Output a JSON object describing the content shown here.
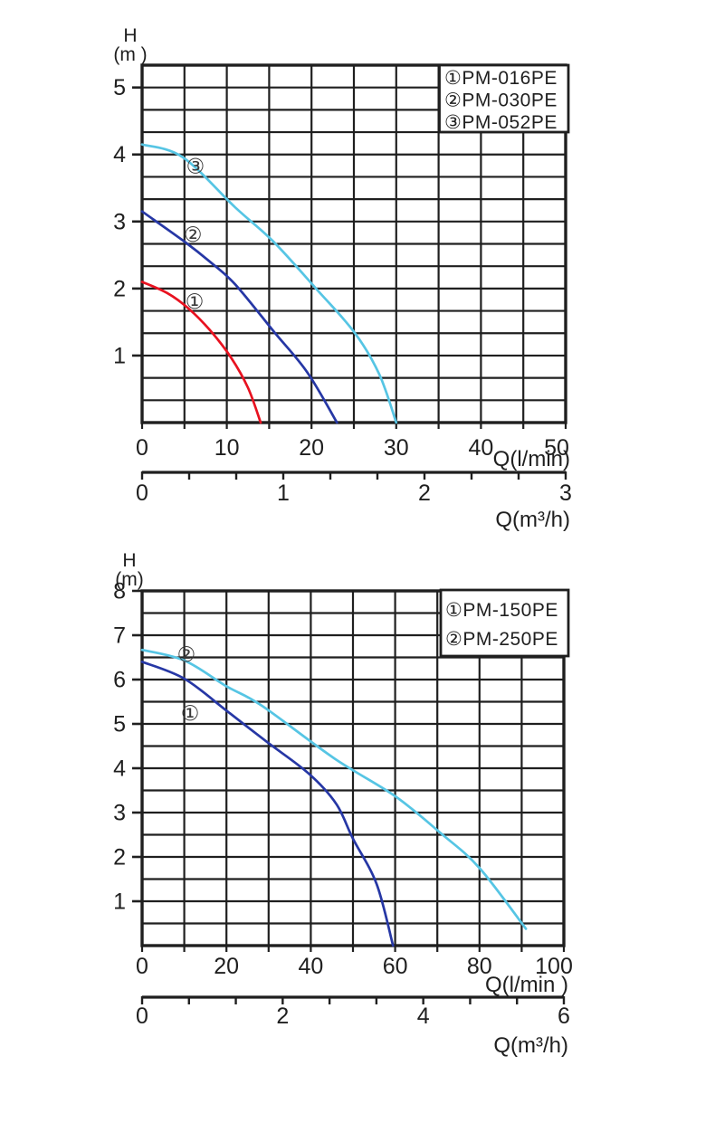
{
  "colors": {
    "ink": "#1f1f1f",
    "red": "#e81220",
    "blue": "#2637a5",
    "cyan": "#56c5e4",
    "background": "#ffffff",
    "legend_fill": "#ffffff"
  },
  "chart_data": [
    {
      "type": "line",
      "name": "small-circulation-pumps",
      "ylabel_line1": "H",
      "ylabel_line2": "(m )",
      "xlabel": "Q(l/min)",
      "x2label": "Q(m³/h)",
      "xlim": [
        0,
        50
      ],
      "ylim": [
        0,
        5.3333
      ],
      "x2lim": [
        0,
        3
      ],
      "x_ticks": [
        "0",
        "10",
        "20",
        "30",
        "40",
        "50"
      ],
      "y_ticks": [
        "1",
        "2",
        "3",
        "4",
        "5"
      ],
      "x2_ticks": [
        "0",
        "1",
        "2",
        "3"
      ],
      "grid": {
        "on": true,
        "cols": 10,
        "rows": 16,
        "x2_intervals": 9
      },
      "legend": {
        "position": "top-right",
        "items": [
          "①PM-016PE",
          "②PM-030PE",
          "③PM-052PE"
        ]
      },
      "annotations": [
        {
          "text": "③",
          "x": 6.3,
          "y": 3.83
        },
        {
          "text": "②",
          "x": 6.0,
          "y": 2.81
        },
        {
          "text": "①",
          "x": 6.2,
          "y": 1.81
        }
      ],
      "series": [
        {
          "name": "PM-016PE",
          "marker": "①",
          "color": "red",
          "points": [
            [
              0,
              2.1
            ],
            [
              3,
              1.93
            ],
            [
              5.5,
              1.7
            ],
            [
              8,
              1.38
            ],
            [
              10.5,
              0.97
            ],
            [
              12.5,
              0.52
            ],
            [
              14,
              0
            ]
          ]
        },
        {
          "name": "PM-030PE",
          "marker": "②",
          "color": "blue",
          "points": [
            [
              0,
              3.15
            ],
            [
              5,
              2.7
            ],
            [
              8,
              2.4
            ],
            [
              11,
              2.06
            ],
            [
              15.6,
              1.35
            ],
            [
              19.5,
              0.75
            ],
            [
              23,
              0
            ]
          ]
        },
        {
          "name": "PM-052PE",
          "marker": "③",
          "color": "cyan",
          "points": [
            [
              0,
              4.15
            ],
            [
              4.8,
              3.96
            ],
            [
              11,
              3.21
            ],
            [
              15.5,
              2.7
            ],
            [
              20.6,
              1.99
            ],
            [
              25.1,
              1.34
            ],
            [
              28,
              0.72
            ],
            [
              30,
              0
            ]
          ]
        }
      ]
    },
    {
      "type": "line",
      "name": "large-circulation-pumps",
      "ylabel_line1": "H",
      "ylabel_line2": "(m)",
      "xlabel": "Q(l/min )",
      "x2label": "Q(m³/h)",
      "xlim": [
        0,
        100
      ],
      "ylim": [
        0,
        8
      ],
      "x2lim": [
        0,
        6
      ],
      "x_ticks": [
        "0",
        "20",
        "40",
        "60",
        "80",
        "100"
      ],
      "y_ticks": [
        "1",
        "2",
        "3",
        "4",
        "5",
        "6",
        "7",
        "8"
      ],
      "x2_ticks": [
        "0",
        "2",
        "4",
        "6"
      ],
      "grid": {
        "on": true,
        "cols": 10,
        "rows": 16,
        "x2_intervals": 9
      },
      "legend": {
        "position": "top-right",
        "items": [
          "①PM-150PE",
          "②PM-250PE"
        ]
      },
      "annotations": [
        {
          "text": "②",
          "x": 10.5,
          "y": 6.57
        },
        {
          "text": "①",
          "x": 11.4,
          "y": 5.25
        }
      ],
      "series": [
        {
          "name": "PM-150PE",
          "marker": "①",
          "color": "blue",
          "points": [
            [
              0,
              6.4
            ],
            [
              10,
              6.02
            ],
            [
              20,
              5.3
            ],
            [
              29.5,
              4.6
            ],
            [
              39.5,
              3.88
            ],
            [
              46,
              3.2
            ],
            [
              50,
              2.41
            ],
            [
              55.6,
              1.39
            ],
            [
              59.5,
              0
            ]
          ]
        },
        {
          "name": "PM-250PE",
          "marker": "②",
          "color": "cyan",
          "points": [
            [
              0,
              6.67
            ],
            [
              10,
              6.43
            ],
            [
              20,
              5.85
            ],
            [
              28.4,
              5.41
            ],
            [
              45.6,
              4.22
            ],
            [
              60,
              3.37
            ],
            [
              71,
              2.52
            ],
            [
              80,
              1.75
            ],
            [
              91,
              0.38
            ]
          ]
        }
      ]
    }
  ]
}
